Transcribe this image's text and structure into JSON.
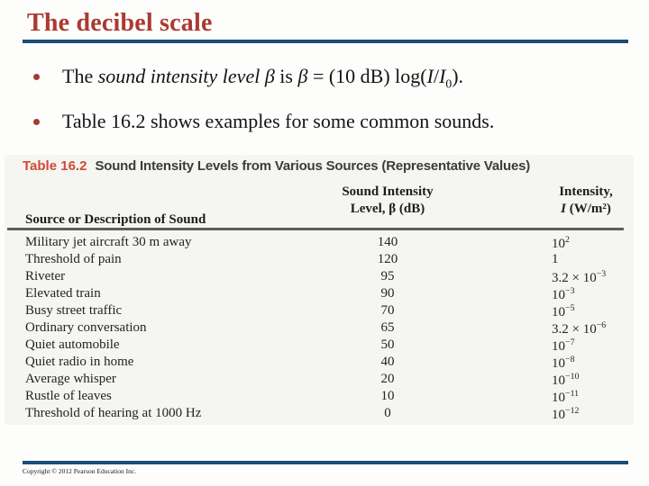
{
  "colors": {
    "title_red": "#ab3a31",
    "rule_blue": "#1c4e79",
    "caption_red": "#d04a36",
    "bullet_dot": "#a63c2c"
  },
  "slide": {
    "title": "The decibel scale"
  },
  "bullets": {
    "b1": {
      "t1": "The ",
      "t2": "sound intensity level ",
      "t3": "β",
      "t4": " is ",
      "t5": "β",
      "t6": " = (10 dB) log(",
      "t7": "I",
      "t8": "/",
      "t9": "I",
      "t10": "0",
      "t11": ")."
    },
    "b2": "Table 16.2 shows examples for some common sounds."
  },
  "table": {
    "caption_label": "Table 16.2",
    "caption_text": "Sound Intensity Levels from Various Sources (Representative Values)",
    "col1_header": "Source or Description of Sound",
    "col2_header_line1": "Sound Intensity",
    "col2_header_line2": "Level, β (dB)",
    "col3_header_line1": "Intensity,",
    "col3_header_line2_i": "I",
    "col3_header_line2_units": " (W/m²)",
    "rows": [
      {
        "source": "Military jet aircraft 30 m away",
        "db": "140",
        "mantissa": "10",
        "exp": "2"
      },
      {
        "source": "Threshold of pain",
        "db": "120",
        "mantissa": "1",
        "exp": ""
      },
      {
        "source": "Riveter",
        "db": "95",
        "mantissa": "3.2 × 10",
        "exp": "−3"
      },
      {
        "source": "Elevated train",
        "db": "90",
        "mantissa": "10",
        "exp": "−3"
      },
      {
        "source": "Busy street traffic",
        "db": "70",
        "mantissa": "10",
        "exp": "−5"
      },
      {
        "source": "Ordinary conversation",
        "db": "65",
        "mantissa": "3.2 × 10",
        "exp": "−6"
      },
      {
        "source": "Quiet automobile",
        "db": "50",
        "mantissa": "10",
        "exp": "−7"
      },
      {
        "source": "Quiet radio in home",
        "db": "40",
        "mantissa": "10",
        "exp": "−8"
      },
      {
        "source": "Average whisper",
        "db": "20",
        "mantissa": "10",
        "exp": "−10"
      },
      {
        "source": "Rustle of leaves",
        "db": "10",
        "mantissa": "10",
        "exp": "−11"
      },
      {
        "source": "Threshold of hearing at 1000 Hz",
        "db": "0",
        "mantissa": "10",
        "exp": "−12"
      }
    ]
  },
  "footer": {
    "copyright": "Copyright © 2012 Pearson Education Inc."
  }
}
